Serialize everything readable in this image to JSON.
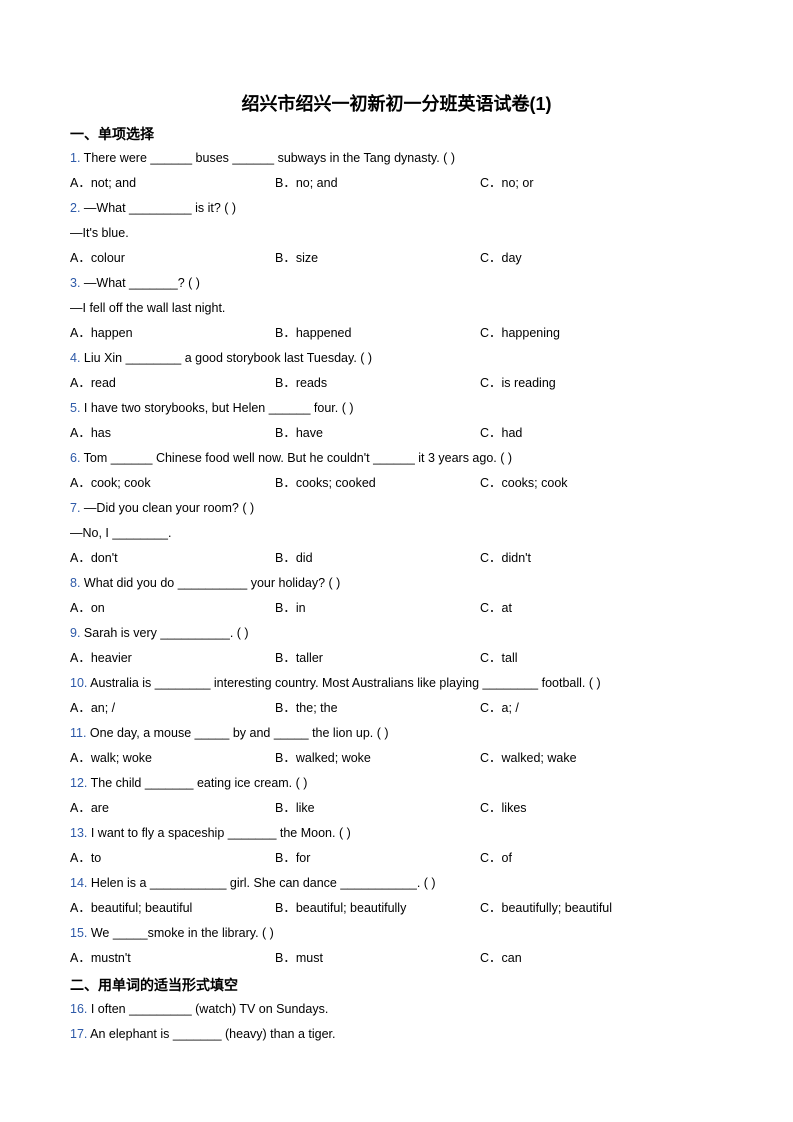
{
  "title": "绍兴市绍兴一初新初一分班英语试卷(1)",
  "section1_title": "一、单项选择",
  "section2_title": "二、用单词的适当形式填空",
  "colors": {
    "qnum": "#2e5aa8",
    "text": "#000000",
    "background": "#ffffff"
  },
  "font": {
    "body_size": 12.5,
    "title_size": 18,
    "section_size": 14,
    "line_height": 2.0
  },
  "section1": [
    {
      "n": "1.",
      "q": "There were ______ buses ______ subways in the Tang dynasty. (    )",
      "A": "A．not; and",
      "B": "B．no; and",
      "C": "C．no; or"
    },
    {
      "n": "2.",
      "q": "—What _________ is it? (    )",
      "extra": "—It's blue.",
      "A": "A．colour",
      "B": "B．size",
      "C": "C．day"
    },
    {
      "n": "3.",
      "q": "—What _______? (    )",
      "extra": "—I fell off the wall last night.",
      "A": "A．happen",
      "B": "B．happened",
      "C": "C．happening"
    },
    {
      "n": "4.",
      "q": "Liu Xin ________ a good storybook last Tuesday. (     )",
      "A": "A．read",
      "B": "B．reads",
      "C": "C．is reading"
    },
    {
      "n": "5.",
      "q": "I have two storybooks, but Helen ______ four. (    )",
      "A": "A．has",
      "B": "B．have",
      "C": "C．had"
    },
    {
      "n": "6.",
      "q": "Tom ______ Chinese food well now. But he couldn't ______ it 3 years ago. (    )",
      "A": "A．cook; cook",
      "B": "B．cooks; cooked",
      "C": "C．cooks; cook"
    },
    {
      "n": "7.",
      "q": "—Did you clean your room? (      )",
      "extra": "—No, I ________.",
      "A": "A．don't",
      "B": "B．did",
      "C": "C．didn't"
    },
    {
      "n": "8.",
      "q": "What did you do __________ your holiday? (     )",
      "A": "A．on",
      "B": "B．in",
      "C": "C．at"
    },
    {
      "n": "9.",
      "q": "Sarah is very __________.  (     )",
      "A": "A．heavier",
      "B": "B．taller",
      "C": "C．tall"
    },
    {
      "n": "10.",
      "q": " Australia is ________ interesting country. Most Australians like playing ________ football. (     )",
      "A": "A．an; /",
      "B": "B．the; the",
      "C": "C．a; /"
    },
    {
      "n": "11.",
      "q": " One day, a mouse _____ by and _____ the lion up. (    )",
      "A": "A．walk; woke",
      "B": "B．walked; woke",
      "C": "C．walked; wake"
    },
    {
      "n": "12.",
      "q": " The child _______ eating ice cream. (    )",
      "A": "A．are",
      "B": "B．like",
      "C": "C．likes"
    },
    {
      "n": "13.",
      "q": " I want to fly a spaceship _______ the Moon. (      )",
      "A": "A．to",
      "B": "B．for",
      "C": "C．of"
    },
    {
      "n": "14.",
      "q": " Helen is a ___________ girl. She can dance ___________. (    )",
      "A": "A．beautiful; beautiful",
      "B": "B．beautiful; beautifully",
      "C": "C．beautifully; beautiful"
    },
    {
      "n": "15.",
      "q": " We _____smoke in the library. (   )",
      "A": "A．mustn't",
      "B": "B．must",
      "C": "C．can"
    }
  ],
  "section2": [
    {
      "n": "16.",
      "q": " I often _________ (watch) TV on Sundays."
    },
    {
      "n": "17.",
      "q": " An elephant is _______ (heavy) than a tiger."
    }
  ]
}
